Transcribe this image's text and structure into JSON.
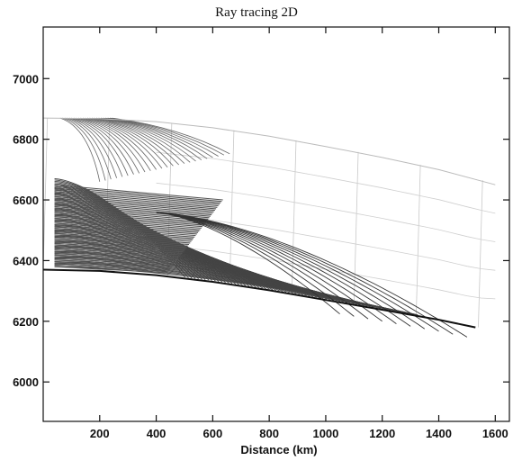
{
  "chart_data": {
    "type": "line",
    "title": "Ray tracing 2D",
    "xlabel": "Distance (km)",
    "ylabel": "",
    "xlim": [
      0,
      1650
    ],
    "ylim": [
      5870,
      7170
    ],
    "xticks": [
      200,
      400,
      600,
      800,
      1000,
      1200,
      1400,
      1600
    ],
    "yticks": [
      6000,
      6200,
      6400,
      6600,
      6800,
      7000
    ],
    "grid": false,
    "series": [
      {
        "role": "surface",
        "color": "#111111",
        "x": [
          0,
          200,
          400,
          600,
          800,
          1000,
          1200,
          1400,
          1530
        ],
        "y": [
          6370,
          6366,
          6352,
          6330,
          6302,
          6270,
          6238,
          6205,
          6180
        ]
      },
      {
        "role": "model-top",
        "color": "#bbbbbb",
        "x": [
          0,
          200,
          400,
          600,
          800,
          1000,
          1200,
          1400,
          1600
        ],
        "y": [
          6870,
          6868,
          6858,
          6838,
          6810,
          6776,
          6740,
          6700,
          6650
        ]
      }
    ]
  }
}
